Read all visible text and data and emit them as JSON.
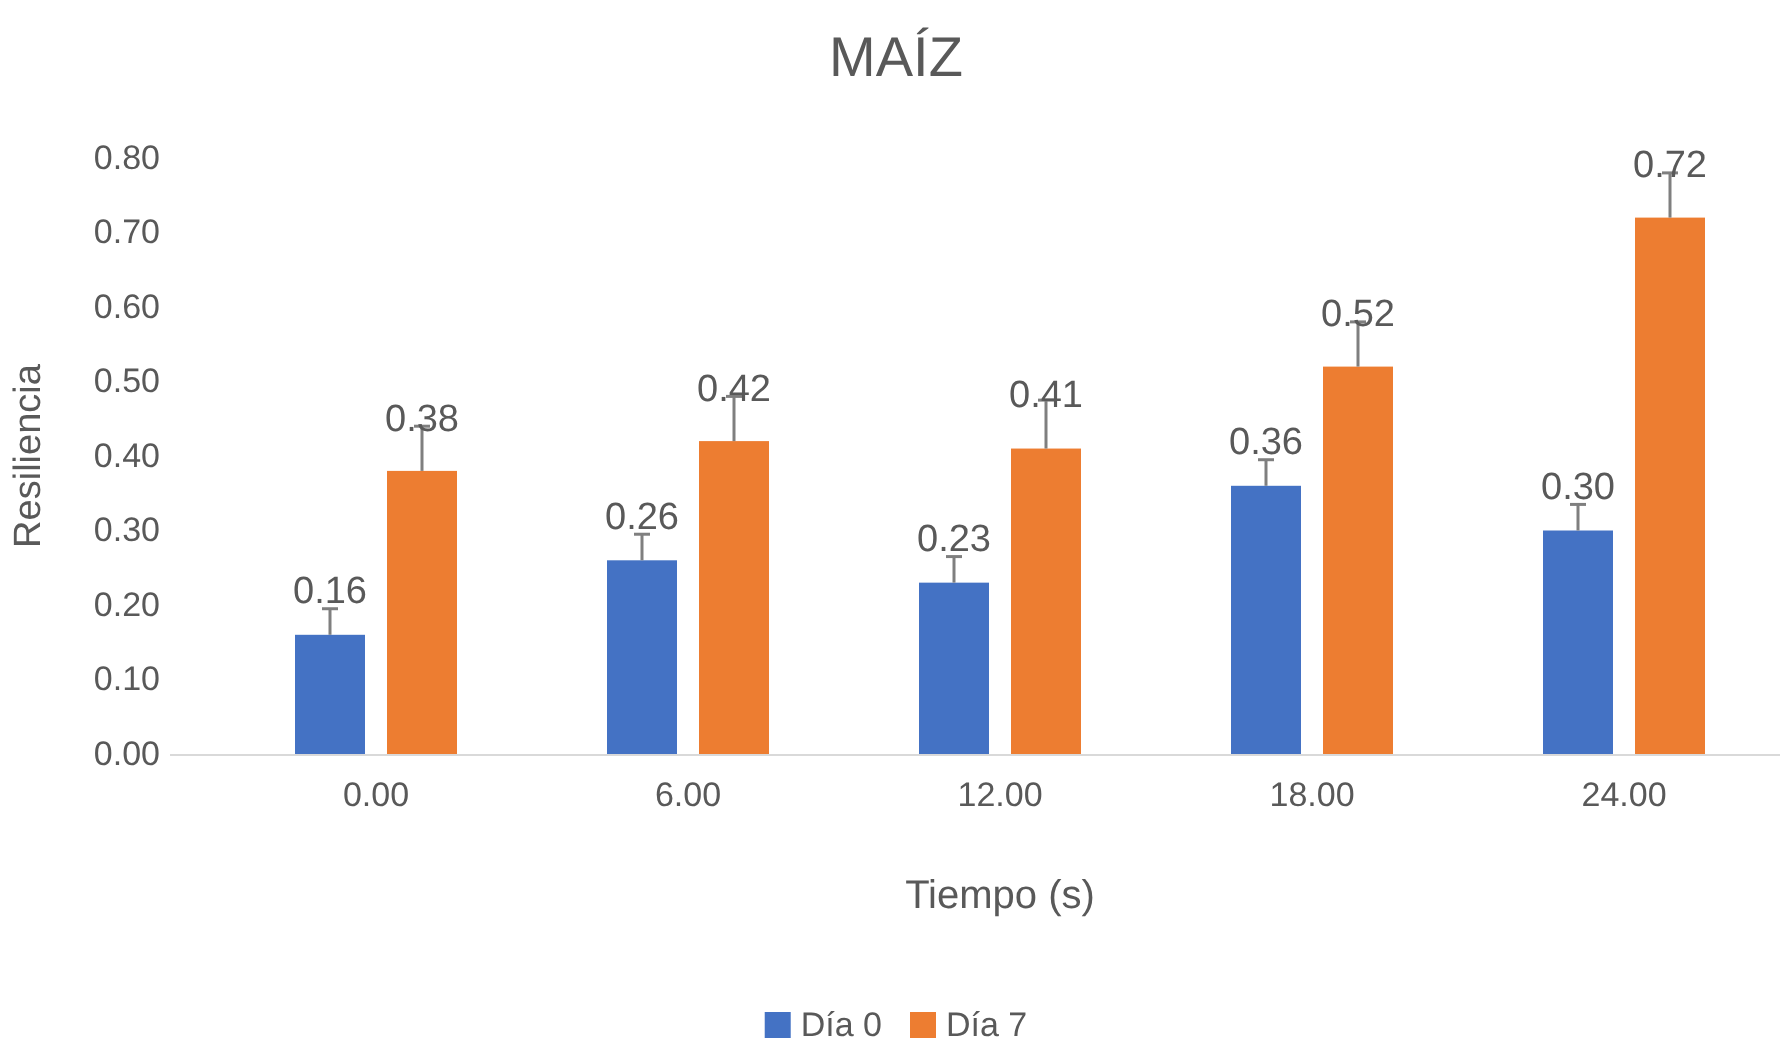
{
  "chart_data": {
    "type": "bar",
    "title": "MAÍZ",
    "xlabel": "Tiempo (s)",
    "ylabel": "Resiliencia",
    "categories": [
      "0.00",
      "6.00",
      "12.00",
      "18.00",
      "24.00"
    ],
    "series": [
      {
        "name": "Día 0",
        "color": "#4472c4",
        "values": [
          0.16,
          0.26,
          0.23,
          0.36,
          0.3
        ],
        "value_labels": [
          "0.16",
          "0.26",
          "0.23",
          "0.36",
          "0.30"
        ],
        "errors": [
          [
            0.16,
            0.195
          ],
          [
            0.26,
            0.295
          ],
          [
            0.23,
            0.265
          ],
          [
            0.36,
            0.395
          ],
          [
            0.3,
            0.335
          ]
        ]
      },
      {
        "name": "Día 7",
        "color": "#ed7d31",
        "values": [
          0.38,
          0.42,
          0.41,
          0.52,
          0.72
        ],
        "value_labels": [
          "0.38",
          "0.42",
          "0.41",
          "0.52",
          "0.72"
        ],
        "errors": [
          [
            0.38,
            0.44
          ],
          [
            0.42,
            0.48
          ],
          [
            0.41,
            0.475
          ],
          [
            0.52,
            0.58
          ],
          [
            0.72,
            0.78
          ]
        ]
      }
    ],
    "ylim": [
      0,
      0.8
    ],
    "yticks": [
      {
        "value": 0,
        "label": "0.00"
      },
      {
        "value": 0.1,
        "label": "0.10"
      },
      {
        "value": 0.2,
        "label": "0.20"
      },
      {
        "value": 0.3,
        "label": "0.30"
      },
      {
        "value": 0.4,
        "label": "0.40"
      },
      {
        "value": 0.5,
        "label": "0.50"
      },
      {
        "value": 0.6,
        "label": "0.60"
      },
      {
        "value": 0.7,
        "label": "0.70"
      },
      {
        "value": 0.8,
        "label": "0.80"
      }
    ],
    "legend": "bottom",
    "grid": false
  }
}
